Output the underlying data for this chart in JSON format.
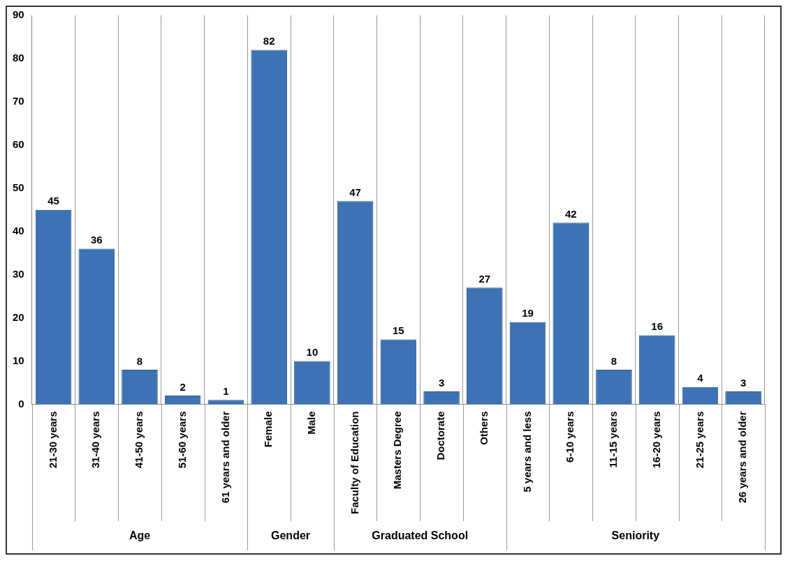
{
  "chart_data": {
    "type": "bar",
    "categories": [
      "21-30 years",
      "31-40 years",
      "41-50 years",
      "51-60 years",
      "61 years and older",
      "Female",
      "Male",
      "Faculty of Education",
      "Masters Degree",
      "Doctorate",
      "Others",
      "5 years and less",
      "6-10 years",
      "11-15 years",
      "16-20 years",
      "21-25 years",
      "26 years and older"
    ],
    "values": [
      45,
      36,
      8,
      2,
      1,
      82,
      10,
      47,
      15,
      3,
      27,
      19,
      42,
      8,
      16,
      4,
      3
    ],
    "color": "#3d72b4",
    "ylim": [
      0,
      90
    ],
    "yticks": [
      0,
      10,
      20,
      30,
      40,
      50,
      60,
      70,
      80,
      90
    ],
    "grid": "x",
    "data_labels": true,
    "legend": false,
    "annotations": [
      "Age",
      "Gender",
      "Graduated School",
      "Seniority"
    ]
  }
}
